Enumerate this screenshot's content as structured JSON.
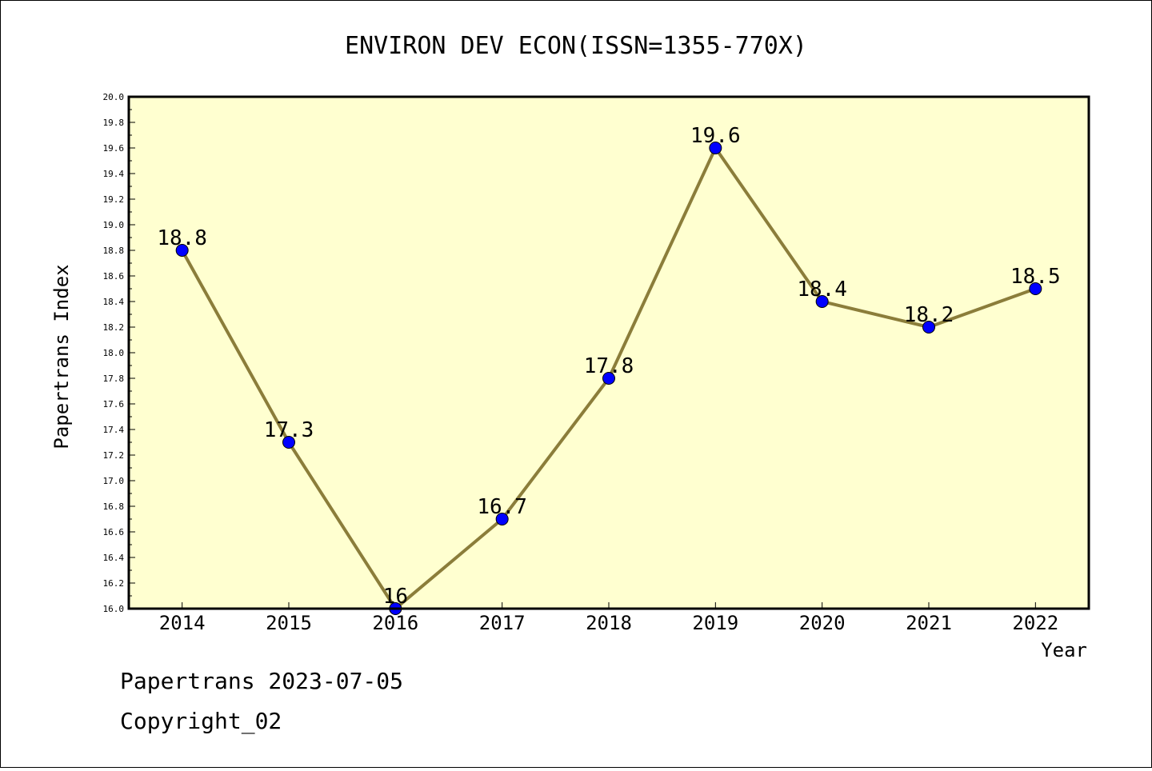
{
  "chart_data": {
    "type": "line",
    "title": "ENVIRON DEV ECON(ISSN=1355-770X)",
    "xlabel": "Year",
    "ylabel": "Papertrans Index",
    "categories": [
      "2014",
      "2015",
      "2016",
      "2017",
      "2018",
      "2019",
      "2020",
      "2021",
      "2022"
    ],
    "values": [
      18.8,
      17.3,
      16,
      16.7,
      17.8,
      19.6,
      18.4,
      18.2,
      18.5
    ],
    "data_labels": [
      "18.8",
      "17.3",
      "16",
      "16.7",
      "17.8",
      "19.6",
      "18.4",
      "18.2",
      "18.5"
    ],
    "ylim": [
      16.0,
      20.0
    ],
    "ytick_labels": [
      "16.0",
      "16.2",
      "16.4",
      "16.6",
      "16.8",
      "17.0",
      "17.2",
      "17.4",
      "17.6",
      "17.8",
      "18.0",
      "18.2",
      "18.4",
      "18.6",
      "18.8",
      "19.0",
      "19.2",
      "19.4",
      "19.6",
      "19.8",
      "20.0"
    ],
    "grid": false,
    "colors": {
      "plot_background": "#ffffd0",
      "line": "#8b7d3a",
      "marker": "#0000ff"
    }
  },
  "footer": {
    "line1": "Papertrans 2023-07-05",
    "line2": "Copyright_02"
  }
}
